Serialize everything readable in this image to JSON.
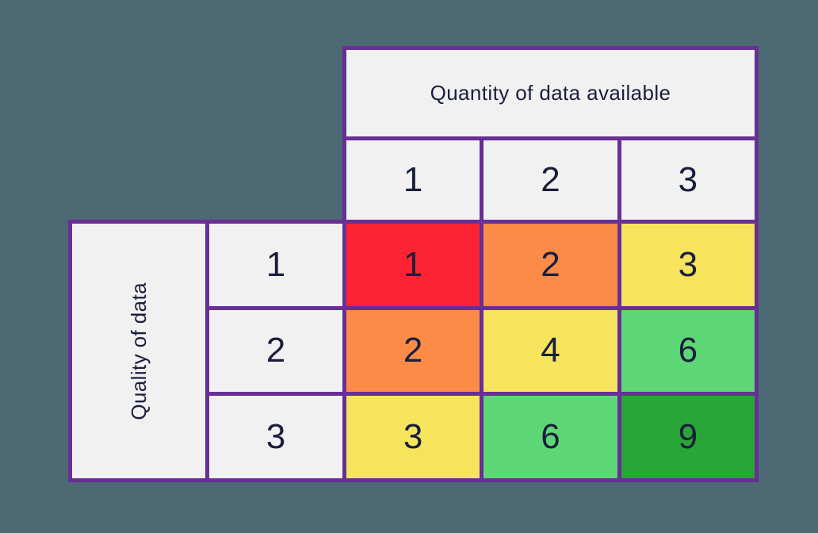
{
  "colors": {
    "page_bg": "#4d6973",
    "border": "#682f94",
    "cell_bg": "#f2f1f2",
    "text": "#1a1e3c",
    "red": "#fc2433",
    "orange": "#fb8b46",
    "yellow": "#f5e45c",
    "light_green": "#5dd775",
    "dark_green": "#28a637"
  },
  "chart_data": {
    "type": "heatmap",
    "x_title": "Quantity of data available",
    "y_title": "Quality of data",
    "x_categories": [
      "1",
      "2",
      "3"
    ],
    "y_categories": [
      "1",
      "2",
      "3"
    ],
    "values": [
      [
        1,
        2,
        3
      ],
      [
        2,
        4,
        6
      ],
      [
        3,
        6,
        9
      ]
    ],
    "cell_colors": [
      [
        "red",
        "orange",
        "yellow"
      ],
      [
        "orange",
        "yellow",
        "light_green"
      ],
      [
        "yellow",
        "light_green",
        "dark_green"
      ]
    ],
    "legend": "none",
    "grid": "on"
  }
}
